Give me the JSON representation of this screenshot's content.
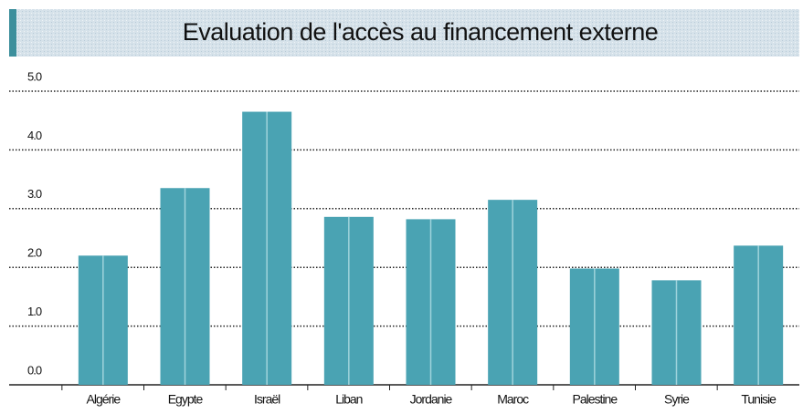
{
  "chart_data": {
    "type": "bar",
    "title": "Evaluation de l'accès au financement externe",
    "categories": [
      "Algérie",
      "Egypte",
      "Israël",
      "Liban",
      "Jordanie",
      "Maroc",
      "Palestine",
      "Syrie",
      "Tunisie"
    ],
    "values": [
      2.2,
      3.35,
      4.65,
      2.86,
      2.82,
      3.15,
      1.98,
      1.78,
      2.37
    ],
    "color": "#4aa3b3",
    "ylim": [
      0,
      5
    ],
    "yticks": [
      {
        "value": 0,
        "label": "0.0"
      },
      {
        "value": 1,
        "label": "1.0"
      },
      {
        "value": 2,
        "label": "2.0"
      },
      {
        "value": 3,
        "label": "3.0"
      },
      {
        "value": 4,
        "label": "4.0"
      },
      {
        "value": 5,
        "label": "5.0"
      }
    ],
    "grid": true
  }
}
